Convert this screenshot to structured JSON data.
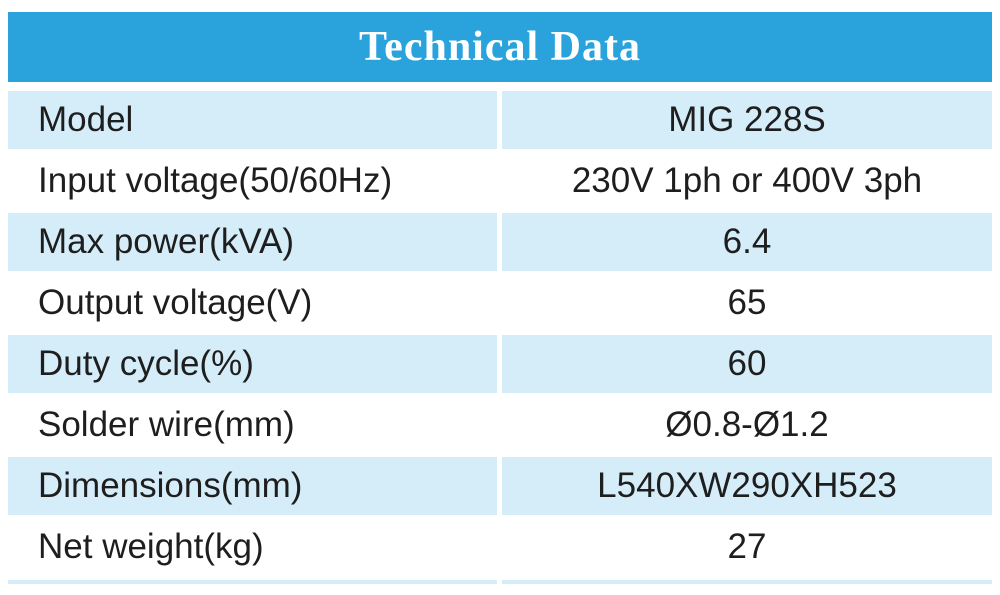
{
  "header": {
    "title": "Technical Data"
  },
  "table": {
    "rows": [
      [
        "Model",
        "MIG 228S"
      ],
      [
        "Input voltage(50/60Hz)",
        "230V 1ph or 400V 3ph"
      ],
      [
        "Max power(kVA)",
        "6.4"
      ],
      [
        "Output voltage(V)",
        "65"
      ],
      [
        "Duty cycle(%)",
        "60"
      ],
      [
        "Solder wire(mm)",
        "Ø0.8-Ø1.2"
      ],
      [
        "Dimensions(mm)",
        "L540XW290XH523"
      ],
      [
        "Net weight(kg)",
        "27"
      ]
    ]
  }
}
